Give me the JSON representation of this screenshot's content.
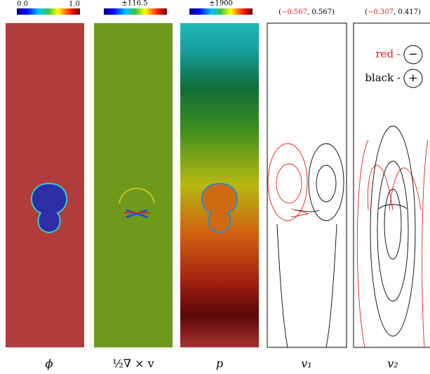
{
  "panels": [
    {
      "colorbar_labels": [
        "0.0",
        "1.0"
      ],
      "caption": "ϕ"
    },
    {
      "colorbar_labels": [
        "±116.5"
      ],
      "caption": "½∇ × v"
    },
    {
      "colorbar_labels": [
        "±1900"
      ],
      "caption": "p"
    },
    {
      "range_label": [
        "(",
        "−0.567",
        ", 0.567)"
      ],
      "caption": "v₁"
    },
    {
      "range_label": [
        "(",
        "−0.307",
        ", 0.417)"
      ],
      "caption": "v₂"
    }
  ],
  "legend": {
    "red": "red -",
    "red_symbol": "−",
    "black": "black -",
    "black_symbol": "+"
  }
}
